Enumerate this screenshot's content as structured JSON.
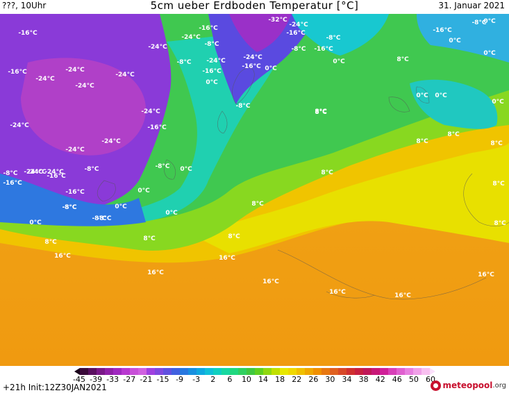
{
  "header": {
    "left": "???, 10Uhr",
    "title": "5cm ueber Erdboden Temperatur [°C]",
    "date": "31. Januar 2021"
  },
  "footer": {
    "run": "+21h Init:12Z30JAN2021",
    "logo_text": "meteopool",
    "logo_suffix": ".org"
  },
  "legend": {
    "ticks": [
      "-45",
      "-39",
      "-33",
      "-27",
      "-21",
      "-15",
      "-9",
      "-3",
      "2",
      "6",
      "10",
      "14",
      "18",
      "22",
      "26",
      "30",
      "34",
      "38",
      "42",
      "46",
      "50",
      "60"
    ],
    "colors": [
      "#3a0a3a",
      "#5a1060",
      "#7a1888",
      "#9020a8",
      "#a028c0",
      "#b838d0",
      "#c850d8",
      "#d060e0",
      "#a040e0",
      "#8048e0",
      "#6050e0",
      "#4060e0",
      "#2878e0",
      "#1890e0",
      "#10a8e0",
      "#10c0d8",
      "#10d0c0",
      "#18d8a0",
      "#20d880",
      "#30d060",
      "#40c840",
      "#60d020",
      "#90d810",
      "#c0e000",
      "#e8e800",
      "#f0d800",
      "#f0c000",
      "#f0a800",
      "#f09000",
      "#e87810",
      "#e06020",
      "#d84828",
      "#d03030",
      "#c82040",
      "#c01858",
      "#c81878",
      "#d02098",
      "#d840b8",
      "#e060d0",
      "#e880e0",
      "#f0a0e8",
      "#f8c0f0"
    ]
  },
  "labels": [
    {
      "text": "-16°C"
    },
    {
      "text": "-16°C"
    },
    {
      "text": "-24°C"
    },
    {
      "text": "-24°C"
    },
    {
      "text": "-24°C"
    },
    {
      "text": "-24°C"
    },
    {
      "text": "-24°C"
    },
    {
      "text": "-16°C"
    },
    {
      "text": "-24°C"
    },
    {
      "text": "-8°C"
    },
    {
      "text": "-24°C"
    },
    {
      "text": "-16°C"
    },
    {
      "text": "0°C"
    },
    {
      "text": "-32°C"
    },
    {
      "text": "-24°C"
    },
    {
      "text": "-16°C"
    },
    {
      "text": "-24°C"
    },
    {
      "text": "-16°C"
    },
    {
      "text": "0°C"
    },
    {
      "text": "-8°C"
    },
    {
      "text": "-8°C"
    },
    {
      "text": "-16°C"
    },
    {
      "text": "0°C"
    },
    {
      "text": "-8°C"
    },
    {
      "text": "0°C"
    },
    {
      "text": "-16°C"
    },
    {
      "text": "0°C"
    },
    {
      "text": "0°C"
    },
    {
      "text": "0°C"
    },
    {
      "text": "8°C"
    },
    {
      "text": "0°C"
    },
    {
      "text": "0°C"
    },
    {
      "text": "8°C"
    },
    {
      "text": "-24°C"
    },
    {
      "text": "-16°C"
    },
    {
      "text": "-24°C"
    },
    {
      "text": "-24°C"
    },
    {
      "text": "-24°C"
    },
    {
      "text": "-24°C"
    },
    {
      "text": "-8°C"
    },
    {
      "text": "-16°C"
    },
    {
      "text": "-16°C"
    },
    {
      "text": "-8°C"
    },
    {
      "text": "-8°C"
    },
    {
      "text": "-8°C"
    },
    {
      "text": "0°C"
    },
    {
      "text": "0°C"
    },
    {
      "text": "0°C"
    },
    {
      "text": "0°C"
    },
    {
      "text": "-8°C"
    },
    {
      "text": "-8°C"
    },
    {
      "text": "-8°C"
    },
    {
      "text": "0°C"
    },
    {
      "text": "8°C"
    },
    {
      "text": "8°C"
    },
    {
      "text": "8°C"
    },
    {
      "text": "8°C"
    },
    {
      "text": "8°C"
    },
    {
      "text": "8°C"
    },
    {
      "text": "8°C"
    },
    {
      "text": "8°C"
    },
    {
      "text": "8°C"
    },
    {
      "text": "8°C"
    },
    {
      "text": "8°C"
    },
    {
      "text": "16°C"
    },
    {
      "text": "16°C"
    },
    {
      "text": "16°C"
    },
    {
      "text": "16°C"
    },
    {
      "text": "16°C"
    },
    {
      "text": "16°C"
    },
    {
      "text": "16°C"
    },
    {
      "text": "-24°C"
    },
    {
      "text": "-24°C"
    },
    {
      "text": "-8°C"
    },
    {
      "text": "-8°C"
    },
    {
      "text": "-16°C"
    }
  ]
}
